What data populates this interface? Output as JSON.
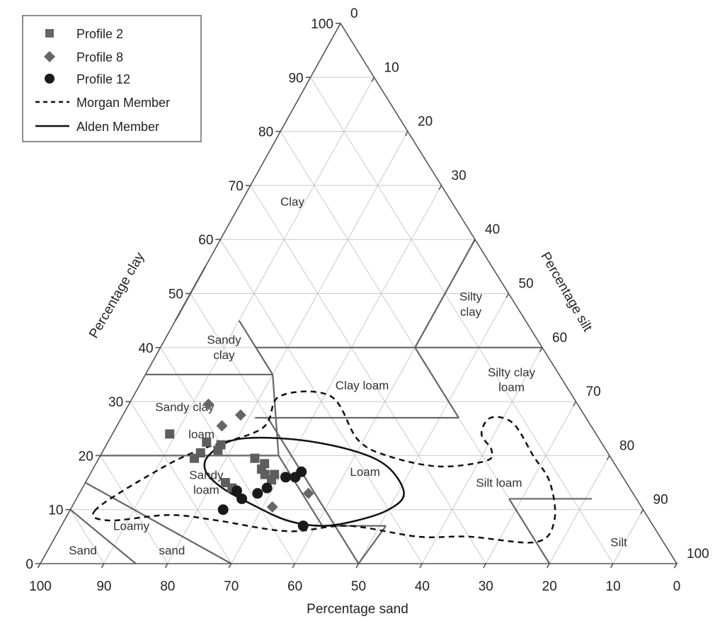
{
  "chart_data": {
    "type": "scatter",
    "subtype": "ternary-soil-texture",
    "axes": {
      "clay": {
        "label": "Percentage clay",
        "ticks": [
          0,
          10,
          20,
          30,
          40,
          50,
          60,
          70,
          80,
          90,
          100
        ]
      },
      "silt": {
        "label": "Percentage silt",
        "ticks": [
          0,
          10,
          20,
          30,
          40,
          50,
          60,
          70,
          80,
          90,
          100
        ]
      },
      "sand": {
        "label": "Percentage sand",
        "ticks": [
          100,
          90,
          80,
          70,
          60,
          50,
          40,
          30,
          20,
          10,
          0
        ]
      }
    },
    "grid": true,
    "legend_position": "top-left",
    "legend": [
      {
        "label": "Profile 2",
        "marker": "square"
      },
      {
        "label": "Profile 8",
        "marker": "diamond"
      },
      {
        "label": "Profile 12",
        "marker": "circle"
      },
      {
        "label": "Morgan Member",
        "line": "dashed"
      },
      {
        "label": "Alden Member",
        "line": "solid"
      }
    ],
    "regions": [
      {
        "lines": [
          "Clay"
        ],
        "sand": 25,
        "clay": 67
      },
      {
        "lines": [
          "Sandy",
          "clay"
        ],
        "sand": 50,
        "clay": 40
      },
      {
        "lines": [
          "Silty",
          "clay"
        ],
        "sand": 7,
        "clay": 48
      },
      {
        "lines": [
          "Clay loam"
        ],
        "sand": 32,
        "clay": 33
      },
      {
        "lines": [
          "Silty clay",
          "loam"
        ],
        "sand": 8,
        "clay": 34
      },
      {
        "lines": [
          "Sandy clay"
        ],
        "sand": 62,
        "clay": 29
      },
      {
        "lines": [
          "loam"
        ],
        "sand": 62,
        "clay": 24
      },
      {
        "lines": [
          "Loam"
        ],
        "sand": 40,
        "clay": 17
      },
      {
        "lines": [
          "Sandy",
          "loam"
        ],
        "sand": 66,
        "clay": 15
      },
      {
        "lines": [
          "Silt loam"
        ],
        "sand": 20,
        "clay": 15
      },
      {
        "lines": [
          "Loamy"
        ],
        "sand": 82,
        "clay": 7
      },
      {
        "lines": [
          "sand"
        ],
        "sand": 78,
        "clay": 2.5
      },
      {
        "lines": [
          "Sand"
        ],
        "sand": 92,
        "clay": 2.5
      },
      {
        "lines": [
          "Silt"
        ],
        "sand": 7,
        "clay": 4
      }
    ],
    "series": [
      {
        "name": "Profile 2",
        "marker": "square",
        "points": [
          {
            "sand": 67,
            "clay": 24
          },
          {
            "sand": 62,
            "clay": 22.5
          },
          {
            "sand": 60,
            "clay": 22
          },
          {
            "sand": 64,
            "clay": 20.5
          },
          {
            "sand": 65.5,
            "clay": 19.5
          },
          {
            "sand": 61,
            "clay": 21
          },
          {
            "sand": 56,
            "clay": 19.5
          },
          {
            "sand": 55,
            "clay": 18.5
          },
          {
            "sand": 56,
            "clay": 16.5
          },
          {
            "sand": 55.5,
            "clay": 15.5
          },
          {
            "sand": 63,
            "clay": 15
          },
          {
            "sand": 62.5,
            "clay": 14
          },
          {
            "sand": 56,
            "clay": 17.5
          },
          {
            "sand": 54.5,
            "clay": 16.5
          }
        ]
      },
      {
        "name": "Profile 8",
        "marker": "diamond",
        "points": [
          {
            "sand": 58,
            "clay": 29.5
          },
          {
            "sand": 54,
            "clay": 27.5
          },
          {
            "sand": 58,
            "clay": 25.5
          },
          {
            "sand": 51,
            "clay": 13
          },
          {
            "sand": 58,
            "clay": 10.5
          }
        ]
      },
      {
        "name": "Profile 12",
        "marker": "circle",
        "points": [
          {
            "sand": 62,
            "clay": 13.5
          },
          {
            "sand": 59,
            "clay": 13
          },
          {
            "sand": 57,
            "clay": 14
          },
          {
            "sand": 53,
            "clay": 16
          },
          {
            "sand": 50,
            "clay": 17
          },
          {
            "sand": 51.5,
            "clay": 16
          },
          {
            "sand": 62,
            "clay": 12
          },
          {
            "sand": 66,
            "clay": 10
          },
          {
            "sand": 55,
            "clay": 7
          }
        ]
      }
    ],
    "envelopes": [
      {
        "name": "Morgan Member",
        "style": "dashed",
        "points": [
          {
            "sand": 86,
            "clay": 10
          },
          {
            "sand": 85,
            "clay": 8
          },
          {
            "sand": 75,
            "clay": 9
          },
          {
            "sand": 68,
            "clay": 8
          },
          {
            "sand": 58,
            "clay": 6
          },
          {
            "sand": 48,
            "clay": 7
          },
          {
            "sand": 38,
            "clay": 5
          },
          {
            "sand": 30,
            "clay": 5
          },
          {
            "sand": 20,
            "clay": 4
          },
          {
            "sand": 15,
            "clay": 8
          },
          {
            "sand": 12,
            "clay": 15
          },
          {
            "sand": 12,
            "clay": 20
          },
          {
            "sand": 12,
            "clay": 26
          },
          {
            "sand": 15,
            "clay": 27
          },
          {
            "sand": 18,
            "clay": 24
          },
          {
            "sand": 18,
            "clay": 21
          },
          {
            "sand": 20,
            "clay": 19
          },
          {
            "sand": 28,
            "clay": 18
          },
          {
            "sand": 35,
            "clay": 20
          },
          {
            "sand": 38,
            "clay": 23
          },
          {
            "sand": 38,
            "clay": 31
          },
          {
            "sand": 46,
            "clay": 31
          },
          {
            "sand": 52,
            "clay": 25
          },
          {
            "sand": 64,
            "clay": 21
          },
          {
            "sand": 73,
            "clay": 17
          },
          {
            "sand": 86,
            "clay": 10
          }
        ]
      },
      {
        "name": "Alden Member",
        "style": "solid",
        "points": [
          {
            "sand": 63,
            "clay": 20
          },
          {
            "sand": 57,
            "clay": 23
          },
          {
            "sand": 48,
            "clay": 23
          },
          {
            "sand": 40,
            "clay": 21
          },
          {
            "sand": 36,
            "clay": 18
          },
          {
            "sand": 36,
            "clay": 13
          },
          {
            "sand": 40,
            "clay": 10
          },
          {
            "sand": 46,
            "clay": 8
          },
          {
            "sand": 52,
            "clay": 7
          },
          {
            "sand": 57,
            "clay": 8
          },
          {
            "sand": 61,
            "clay": 11
          },
          {
            "sand": 64,
            "clay": 14
          },
          {
            "sand": 65,
            "clay": 17
          },
          {
            "sand": 63,
            "clay": 20
          }
        ]
      }
    ]
  }
}
